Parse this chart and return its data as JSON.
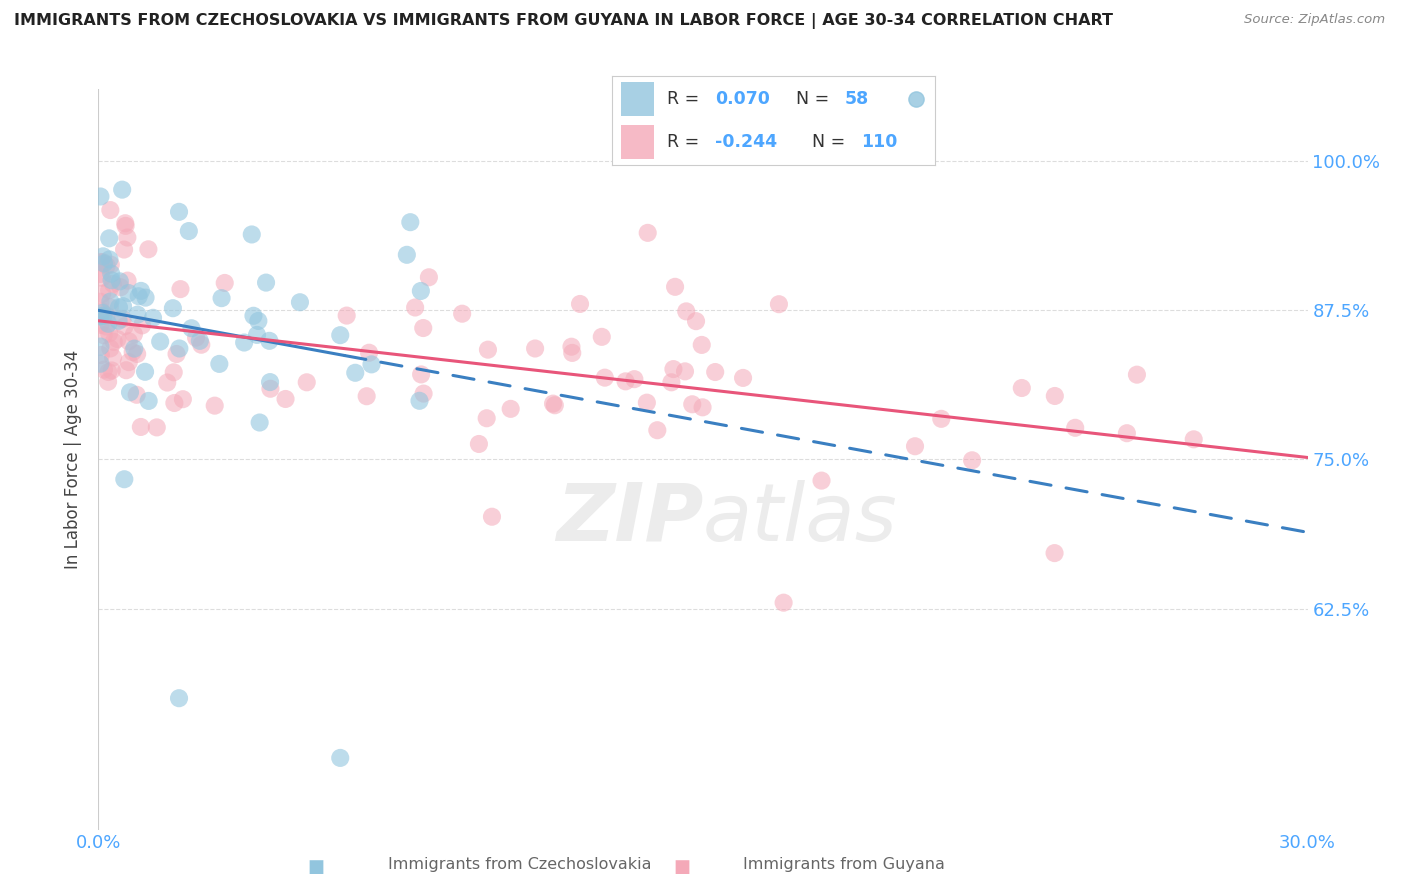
{
  "title": "IMMIGRANTS FROM CZECHOSLOVAKIA VS IMMIGRANTS FROM GUYANA IN LABOR FORCE | AGE 30-34 CORRELATION CHART",
  "source": "Source: ZipAtlas.com",
  "ylabel": "In Labor Force | Age 30-34",
  "yticks": [
    "62.5%",
    "75.0%",
    "87.5%",
    "100.0%"
  ],
  "ytick_vals": [
    0.625,
    0.75,
    0.875,
    1.0
  ],
  "legend1_r": "0.070",
  "legend1_n": "58",
  "legend2_r": "-0.244",
  "legend2_n": "110",
  "color_blue": "#92c5de",
  "color_pink": "#f4a9b8",
  "color_blue_line": "#3a7fc1",
  "color_pink_line": "#e8557a",
  "xlim": [
    0.0,
    0.3
  ],
  "ylim": [
    0.44,
    1.06
  ]
}
